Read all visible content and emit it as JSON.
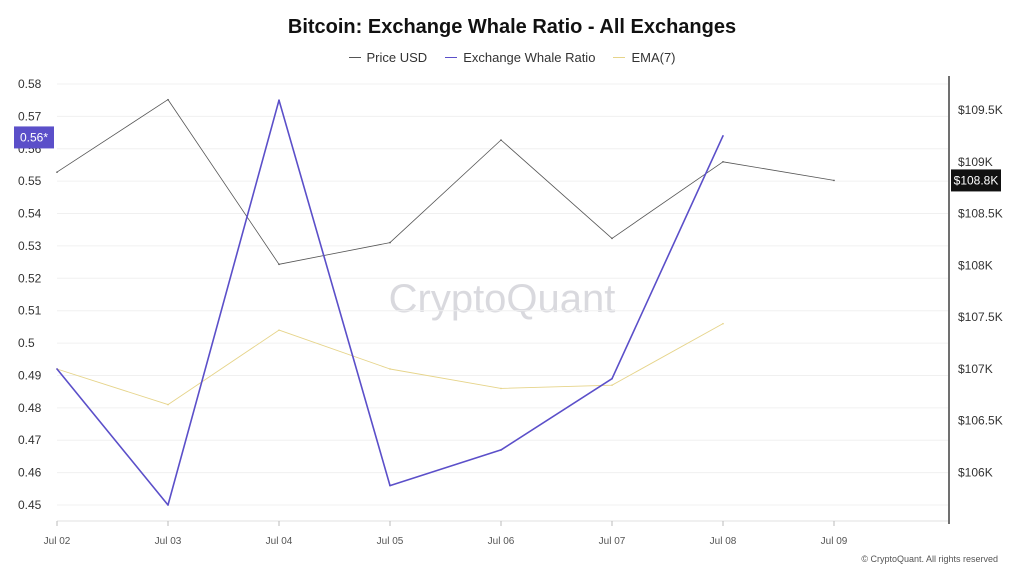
{
  "chart_data": {
    "type": "line",
    "title": "Bitcoin: Exchange Whale Ratio - All Exchanges",
    "categories": [
      "Jul 02",
      "Jul 03",
      "Jul 04",
      "Jul 05",
      "Jul 06",
      "Jul 07",
      "Jul 08",
      "Jul 09"
    ],
    "series": [
      {
        "name": "Price USD",
        "axis": "right",
        "color": "#555555",
        "values": [
          108900,
          109600,
          108010,
          108220,
          109210,
          108260,
          109000,
          108820
        ]
      },
      {
        "name": "Exchange Whale Ratio",
        "axis": "left",
        "color": "#5b4fc9",
        "values": [
          0.492,
          0.45,
          0.575,
          0.456,
          0.467,
          0.489,
          0.564,
          null
        ]
      },
      {
        "name": "EMA(7)",
        "axis": "left",
        "color": "#e6d48a",
        "values": [
          0.492,
          0.481,
          0.504,
          0.492,
          0.486,
          0.487,
          0.506,
          null
        ]
      }
    ],
    "left_axis": {
      "min": 0.445,
      "max": 0.58,
      "ticks": [
        "0.45",
        "0.46",
        "0.47",
        "0.48",
        "0.49",
        "0.5",
        "0.51",
        "0.52",
        "0.53",
        "0.54",
        "0.55",
        "0.56",
        "0.57",
        "0.58"
      ]
    },
    "right_axis": {
      "min": 105500,
      "max": 110000,
      "ticks": [
        {
          "v": 106000,
          "label": "$106K"
        },
        {
          "v": 106500,
          "label": "$106.5K"
        },
        {
          "v": 107000,
          "label": "$107K"
        },
        {
          "v": 107500,
          "label": "$107.5K"
        },
        {
          "v": 108000,
          "label": "$108K"
        },
        {
          "v": 108500,
          "label": "$108.5K"
        },
        {
          "v": 109000,
          "label": "$109K"
        },
        {
          "v": 109500,
          "label": "$109.5K"
        }
      ]
    },
    "left_marker": {
      "label": "0.56*",
      "value": 0.5635,
      "color": "#5b4fc9"
    },
    "right_marker": {
      "label": "$108.8K",
      "value": 108820,
      "color": "#111111"
    },
    "watermark": "CryptoQuant",
    "grid": true,
    "legend_position": "top-center"
  },
  "footer": {
    "credit": "© CryptoQuant. All rights reserved"
  }
}
